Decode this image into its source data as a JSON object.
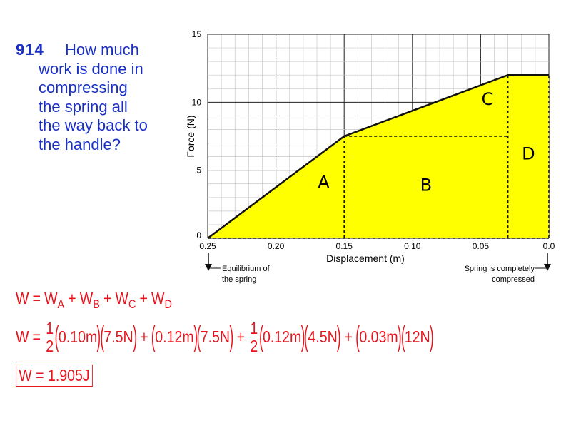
{
  "question": {
    "number": "914",
    "lines": [
      "How much",
      "work is done in",
      "compressing",
      "the spring all",
      "the way back to",
      "the handle?"
    ],
    "color": "#1a2fc4"
  },
  "chart_data": {
    "type": "area",
    "xlabel": "Displacement (m)",
    "ylabel": "Force (N)",
    "xlim": [
      0.25,
      0.0
    ],
    "ylim": [
      0,
      15
    ],
    "x_ticks": [
      "0.25",
      "0.20",
      "0.15",
      "0.10",
      "0.05",
      "0.0"
    ],
    "y_ticks": [
      "0",
      "5",
      "10",
      "15"
    ],
    "grid": true,
    "reversed_x": true,
    "series": [
      {
        "x": [
          0.25,
          0.15,
          0.03,
          0.0
        ],
        "y": [
          0,
          7.5,
          12,
          12
        ]
      }
    ],
    "fill_color": "#ffff00",
    "regions": [
      {
        "label": "A",
        "x": 0.165,
        "y": 3.7
      },
      {
        "label": "B",
        "x": 0.09,
        "y": 3.5
      },
      {
        "label": "C",
        "x": 0.045,
        "y": 9.8
      },
      {
        "label": "D",
        "x": 0.015,
        "y": 5.8
      }
    ],
    "annotations": {
      "left": [
        "Equilibrium of",
        "the spring"
      ],
      "right": [
        "Spring is completely",
        "compressed"
      ]
    }
  },
  "equations": {
    "color": "#e8141c",
    "line1": {
      "lhs": "W",
      "eq": "=",
      "base": "W",
      "subs": [
        "A",
        "B",
        "C",
        "D"
      ],
      "op": "+"
    },
    "line2": {
      "lhs": "W",
      "eq": "=",
      "op": "+",
      "terms": [
        {
          "num": "1",
          "den": "2",
          "factors": [
            "0.10m",
            "7.5N"
          ]
        },
        {
          "factors": [
            "0.12m",
            "7.5N"
          ]
        },
        {
          "num": "1",
          "den": "2",
          "factors": [
            "0.12m",
            "4.5N"
          ]
        },
        {
          "factors": [
            "0.03m",
            "12N"
          ]
        }
      ]
    },
    "answer": "W = 1.905J"
  }
}
